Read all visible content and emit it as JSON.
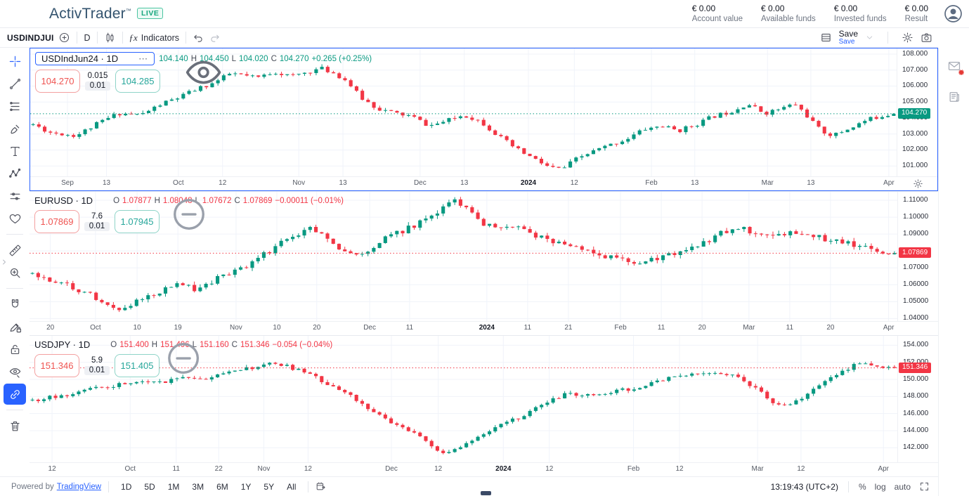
{
  "header": {
    "logo_text": "ActivTrader",
    "logo_tm": "™",
    "live_badge": "LIVE",
    "stats": [
      {
        "value": "€ 0.00",
        "label": "Account value"
      },
      {
        "value": "€ 0.00",
        "label": "Available funds"
      },
      {
        "value": "€ 0.00",
        "label": "Invested funds"
      },
      {
        "value": "€ 0.00",
        "label": "Result"
      }
    ]
  },
  "toolbar": {
    "symbol": "USDINDJUI",
    "interval": "D",
    "fx": "ƒx",
    "indicators_label": "Indicators",
    "save_label": "Save",
    "save_sub": "Save"
  },
  "left_toolbar": {
    "tools": [
      {
        "icon": "crosshair",
        "name": "crosshair-tool",
        "active": true
      },
      {
        "icon": "trendline",
        "name": "trend-line-tool"
      },
      {
        "icon": "fib",
        "name": "fib-retracement-tool"
      },
      {
        "icon": "brush",
        "name": "brush-tool"
      },
      {
        "icon": "text",
        "name": "text-tool"
      },
      {
        "icon": "pattern",
        "name": "xabcd-pattern-tool"
      },
      {
        "icon": "sliders",
        "name": "projection-tool"
      },
      {
        "icon": "heart",
        "name": "favorites-tool"
      },
      {
        "divider": true
      },
      {
        "icon": "ruler",
        "name": "measure-tool"
      },
      {
        "icon": "zoomin",
        "name": "zoom-in-tool"
      },
      {
        "divider": true
      },
      {
        "icon": "magnet",
        "name": "magnet-tool"
      },
      {
        "icon": "pencillock",
        "name": "stay-in-drawing-mode-tool"
      },
      {
        "icon": "lock",
        "name": "lock-all-drawings-tool"
      },
      {
        "icon": "eyehide",
        "name": "hide-all-drawings-tool"
      },
      {
        "icon": "link",
        "name": "sync-drawings-tool",
        "fill": true
      },
      {
        "divider": true
      },
      {
        "icon": "trash",
        "name": "remove-drawings-tool"
      }
    ]
  },
  "bottom_bar": {
    "powered_by": "Powered by",
    "tradingview_link": "TradingView",
    "ranges": [
      "1D",
      "5D",
      "1M",
      "3M",
      "6M",
      "1Y",
      "5Y",
      "All"
    ],
    "clock": "13:19:43 (UTC+2)",
    "percent_label": "%",
    "log_label": "log",
    "auto_label": "auto"
  },
  "colors": {
    "up": "#089981",
    "down": "#f23645",
    "accent_blue": "#2962ff",
    "sell_red": "#ef5350",
    "buy_teal": "#26a69a",
    "grid": "#f0f3fa"
  },
  "chart_data": [
    {
      "type": "candlestick",
      "symbol": "USDIndJun24",
      "title": "USDIndJun24 · 1D",
      "selected": true,
      "legend_style": "box",
      "axis_gear": true,
      "ohlc": {
        "o_label": "",
        "o": "104.140",
        "h": "104.450",
        "l": "104.020",
        "c": "104.270",
        "change": "+0.265 (+0.25%)",
        "color": "#089981"
      },
      "sell": "104.270",
      "spread": "0.015",
      "point": "0.01",
      "buy": "104.285",
      "last": 104.27,
      "last_label": "104.270",
      "last_color": "#089981",
      "ylim": [
        100.35,
        108.35
      ],
      "decimals": 3,
      "y_ticks": [
        108,
        107,
        106,
        105,
        104,
        103,
        102,
        101
      ],
      "x_ticks": [
        [
          0.043,
          "Sep",
          0
        ],
        [
          0.088,
          "13",
          0
        ],
        [
          0.171,
          "Oct",
          0
        ],
        [
          0.222,
          "12",
          0
        ],
        [
          0.31,
          "Nov",
          0
        ],
        [
          0.361,
          "13",
          0
        ],
        [
          0.45,
          "Dec",
          0
        ],
        [
          0.501,
          "13",
          0
        ],
        [
          0.575,
          "2024",
          1
        ],
        [
          0.628,
          "12",
          0
        ],
        [
          0.717,
          "Feb",
          0
        ],
        [
          0.767,
          "13",
          0
        ],
        [
          0.851,
          "Mar",
          0
        ],
        [
          0.901,
          "13",
          0
        ],
        [
          0.991,
          "Apr",
          0
        ]
      ],
      "path": [
        [
          0,
          103.6
        ],
        [
          0.02,
          103.1
        ],
        [
          0.05,
          102.9
        ],
        [
          0.08,
          103.8
        ],
        [
          0.1,
          104.3
        ],
        [
          0.125,
          104.2
        ],
        [
          0.15,
          104.9
        ],
        [
          0.17,
          105.3
        ],
        [
          0.19,
          105.8
        ],
        [
          0.21,
          106.2
        ],
        [
          0.23,
          106.8
        ],
        [
          0.26,
          106.5
        ],
        [
          0.28,
          106.9
        ],
        [
          0.3,
          106.6
        ],
        [
          0.32,
          106.9
        ],
        [
          0.335,
          107.1
        ],
        [
          0.35,
          106.8
        ],
        [
          0.365,
          106.3
        ],
        [
          0.38,
          105.3
        ],
        [
          0.4,
          104.6
        ],
        [
          0.42,
          104.3
        ],
        [
          0.44,
          104.1
        ],
        [
          0.46,
          103.5
        ],
        [
          0.48,
          103.8
        ],
        [
          0.5,
          104.2
        ],
        [
          0.52,
          103.8
        ],
        [
          0.54,
          102.9
        ],
        [
          0.56,
          102.1
        ],
        [
          0.58,
          101.5
        ],
        [
          0.6,
          100.9
        ],
        [
          0.615,
          100.8
        ],
        [
          0.63,
          101.4
        ],
        [
          0.65,
          101.9
        ],
        [
          0.67,
          102.3
        ],
        [
          0.69,
          102.7
        ],
        [
          0.71,
          103.3
        ],
        [
          0.73,
          103.5
        ],
        [
          0.75,
          103.2
        ],
        [
          0.77,
          103.6
        ],
        [
          0.79,
          104.1
        ],
        [
          0.81,
          104.4
        ],
        [
          0.83,
          104.9
        ],
        [
          0.85,
          104.3
        ],
        [
          0.87,
          104.6
        ],
        [
          0.885,
          104.9
        ],
        [
          0.9,
          104.1
        ],
        [
          0.915,
          103.2
        ],
        [
          0.93,
          102.9
        ],
        [
          0.95,
          103.4
        ],
        [
          0.97,
          103.9
        ],
        [
          0.99,
          104.2
        ],
        [
          1,
          104.27
        ]
      ],
      "noise": 0.3,
      "candles": 150,
      "seed": 11
    },
    {
      "type": "candlestick",
      "symbol": "EURUSD",
      "title": "EURUSD · 1D",
      "selected": false,
      "legend_style": "minus",
      "axis_gear": false,
      "ohlc": {
        "o_label": "O",
        "o": "1.07877",
        "h": "1.08048",
        "l": "1.07672",
        "c": "1.07869",
        "change": "−0.00011 (−0.01%)",
        "color": "#f23645"
      },
      "sell": "1.07869",
      "spread": "7.6",
      "point": "0.01",
      "buy": "1.07945",
      "last": 1.07869,
      "last_label": "1.07869",
      "last_color": "#f23645",
      "ylim": [
        1.0385,
        1.115
      ],
      "decimals": 5,
      "y_ticks": [
        1.11,
        1.1,
        1.09,
        1.08,
        1.07,
        1.06,
        1.05,
        1.04
      ],
      "x_ticks": [
        [
          0.024,
          "20",
          0
        ],
        [
          0.076,
          "Oct",
          0
        ],
        [
          0.124,
          "10",
          0
        ],
        [
          0.171,
          "19",
          0
        ],
        [
          0.238,
          "Nov",
          0
        ],
        [
          0.285,
          "10",
          0
        ],
        [
          0.331,
          "20",
          0
        ],
        [
          0.392,
          "Dec",
          0
        ],
        [
          0.438,
          "11",
          0
        ],
        [
          0.527,
          "2024",
          1
        ],
        [
          0.574,
          "11",
          0
        ],
        [
          0.621,
          "21",
          0
        ],
        [
          0.681,
          "Feb",
          0
        ],
        [
          0.728,
          "11",
          0
        ],
        [
          0.775,
          "20",
          0
        ],
        [
          0.829,
          "Mar",
          0
        ],
        [
          0.876,
          "11",
          0
        ],
        [
          0.923,
          "20",
          0
        ],
        [
          0.99,
          "Apr",
          0
        ]
      ],
      "path": [
        [
          0,
          1.0665
        ],
        [
          0.02,
          1.0635
        ],
        [
          0.04,
          1.06
        ],
        [
          0.06,
          1.056
        ],
        [
          0.08,
          1.051
        ],
        [
          0.1,
          1.0465
        ],
        [
          0.115,
          1.0478
        ],
        [
          0.13,
          1.053
        ],
        [
          0.15,
          1.0565
        ],
        [
          0.17,
          1.061
        ],
        [
          0.19,
          1.057
        ],
        [
          0.21,
          1.062
        ],
        [
          0.23,
          1.068
        ],
        [
          0.25,
          1.072
        ],
        [
          0.27,
          1.078
        ],
        [
          0.29,
          1.086
        ],
        [
          0.31,
          1.09
        ],
        [
          0.325,
          1.0935
        ],
        [
          0.34,
          1.087
        ],
        [
          0.36,
          1.08
        ],
        [
          0.38,
          1.077
        ],
        [
          0.4,
          1.085
        ],
        [
          0.42,
          1.09
        ],
        [
          0.44,
          1.0945
        ],
        [
          0.46,
          1.099
        ],
        [
          0.475,
          1.105
        ],
        [
          0.49,
          1.111
        ],
        [
          0.5,
          1.106
        ],
        [
          0.52,
          1.097
        ],
        [
          0.54,
          1.093
        ],
        [
          0.56,
          1.0945
        ],
        [
          0.58,
          1.0905
        ],
        [
          0.6,
          1.0855
        ],
        [
          0.62,
          1.0835
        ],
        [
          0.64,
          1.0815
        ],
        [
          0.66,
          1.0775
        ],
        [
          0.68,
          1.075
        ],
        [
          0.7,
          1.0715
        ],
        [
          0.72,
          1.075
        ],
        [
          0.74,
          1.0775
        ],
        [
          0.76,
          1.0805
        ],
        [
          0.78,
          1.0855
        ],
        [
          0.8,
          1.0905
        ],
        [
          0.82,
          1.094
        ],
        [
          0.84,
          1.089
        ],
        [
          0.86,
          1.0875
        ],
        [
          0.88,
          1.092
        ],
        [
          0.9,
          1.09
        ],
        [
          0.92,
          1.087
        ],
        [
          0.94,
          1.085
        ],
        [
          0.96,
          1.083
        ],
        [
          0.98,
          1.0805
        ],
        [
          1,
          1.07869
        ]
      ],
      "noise": 0.0038,
      "candles": 150,
      "seed": 22
    },
    {
      "type": "candlestick",
      "symbol": "USDJPY",
      "title": "USDJPY · 1D",
      "selected": false,
      "legend_style": "minus",
      "axis_gear": false,
      "ohlc": {
        "o_label": "O",
        "o": "151.400",
        "h": "151.496",
        "l": "151.160",
        "c": "151.346",
        "change": "−0.054 (−0.04%)",
        "color": "#f23645"
      },
      "sell": "151.346",
      "spread": "5.9",
      "point": "0.01",
      "buy": "151.405",
      "last": 151.346,
      "last_label": "151.346",
      "last_color": "#f23645",
      "ylim": [
        140.3,
        155.1
      ],
      "decimals": 3,
      "y_ticks": [
        154,
        152,
        150,
        148,
        146,
        144,
        142
      ],
      "x_ticks": [
        [
          0.026,
          "12",
          0
        ],
        [
          0.116,
          "Oct",
          0
        ],
        [
          0.169,
          "11",
          0
        ],
        [
          0.218,
          "22",
          0
        ],
        [
          0.27,
          "Nov",
          0
        ],
        [
          0.321,
          "12",
          0
        ],
        [
          0.417,
          "Dec",
          0
        ],
        [
          0.471,
          "12",
          0
        ],
        [
          0.546,
          "2024",
          1
        ],
        [
          0.599,
          "12",
          0
        ],
        [
          0.696,
          "Feb",
          0
        ],
        [
          0.749,
          "12",
          0
        ],
        [
          0.839,
          "Mar",
          0
        ],
        [
          0.889,
          "12",
          0
        ],
        [
          0.984,
          "Apr",
          0
        ]
      ],
      "path": [
        [
          0,
          147.6
        ],
        [
          0.03,
          148.0
        ],
        [
          0.06,
          148.7
        ],
        [
          0.09,
          149.2
        ],
        [
          0.12,
          149.7
        ],
        [
          0.14,
          149.5
        ],
        [
          0.16,
          149.9
        ],
        [
          0.18,
          150.2
        ],
        [
          0.2,
          150.0
        ],
        [
          0.22,
          150.5
        ],
        [
          0.24,
          151.0
        ],
        [
          0.26,
          151.5
        ],
        [
          0.28,
          151.8
        ],
        [
          0.3,
          151.4
        ],
        [
          0.32,
          150.6
        ],
        [
          0.34,
          149.6
        ],
        [
          0.36,
          148.6
        ],
        [
          0.38,
          147.4
        ],
        [
          0.4,
          146.0
        ],
        [
          0.42,
          144.8
        ],
        [
          0.44,
          143.9
        ],
        [
          0.455,
          142.8
        ],
        [
          0.47,
          141.8
        ],
        [
          0.48,
          141.2
        ],
        [
          0.5,
          142.4
        ],
        [
          0.52,
          143.6
        ],
        [
          0.54,
          144.6
        ],
        [
          0.56,
          145.3
        ],
        [
          0.58,
          146.4
        ],
        [
          0.6,
          147.6
        ],
        [
          0.62,
          148.3
        ],
        [
          0.64,
          148.0
        ],
        [
          0.66,
          148.4
        ],
        [
          0.68,
          148.6
        ],
        [
          0.7,
          149.1
        ],
        [
          0.72,
          149.6
        ],
        [
          0.74,
          150.2
        ],
        [
          0.76,
          150.5
        ],
        [
          0.78,
          150.8
        ],
        [
          0.8,
          150.8
        ],
        [
          0.82,
          150.2
        ],
        [
          0.84,
          148.9
        ],
        [
          0.855,
          147.4
        ],
        [
          0.87,
          146.8
        ],
        [
          0.89,
          147.6
        ],
        [
          0.91,
          149.1
        ],
        [
          0.93,
          150.6
        ],
        [
          0.95,
          151.5
        ],
        [
          0.965,
          151.9
        ],
        [
          0.98,
          151.5
        ],
        [
          1,
          151.346
        ]
      ],
      "noise": 0.52,
      "candles": 150,
      "seed": 33
    }
  ],
  "icons": {
    "crosshair": "cross cursor",
    "trendline": "trend line",
    "fib": "fib retracement",
    "brush": "brush",
    "text": "text",
    "pattern": "xabcd pattern",
    "sliders": "projection",
    "heart": "favorites",
    "ruler": "measure",
    "zoomin": "zoom in",
    "magnet": "magnet",
    "pencillock": "drawing mode lock",
    "lock": "lock drawings",
    "eyehide": "hide drawings",
    "link": "sync drawings",
    "trash": "remove drawings",
    "pluscircle": "compare add",
    "candles": "chart type candles",
    "undo": "undo",
    "redo": "redo",
    "layout": "layout",
    "chevrondown": "chevron down",
    "gear": "settings",
    "camera": "screenshot",
    "envelope": "messages",
    "news": "news",
    "avatar": "account",
    "calendar": "go to date",
    "fullscreen": "fullscreen",
    "chevronright": "expand panel"
  }
}
